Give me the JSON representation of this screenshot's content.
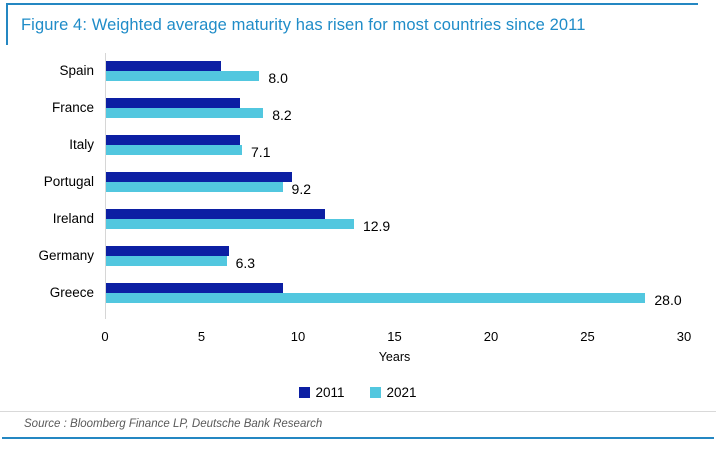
{
  "header": {
    "title": "Figure 4: Weighted average maturity has risen for most countries since 2011"
  },
  "chart_data": {
    "type": "bar",
    "orientation": "horizontal",
    "title": "Figure 4: Weighted average maturity has risen for most countries since 2011",
    "categories": [
      "Spain",
      "France",
      "Italy",
      "Portugal",
      "Ireland",
      "Germany",
      "Greece"
    ],
    "series": [
      {
        "name": "2011",
        "values": [
          6.0,
          7.0,
          7.0,
          9.7,
          11.4,
          6.4,
          9.2
        ]
      },
      {
        "name": "2021",
        "values": [
          8.0,
          8.2,
          7.1,
          9.2,
          12.9,
          6.3,
          28.0
        ]
      }
    ],
    "value_labels": [
      "8.0",
      "8.2",
      "7.1",
      "9.2",
      "12.9",
      "6.3",
      "28.0"
    ],
    "value_labels_series": "2021",
    "xlabel": "Years",
    "xlim": [
      0,
      30
    ],
    "xticks": [
      "0",
      "5",
      "10",
      "15",
      "20",
      "25",
      "30"
    ],
    "legend": [
      "2011",
      "2021"
    ],
    "legend_position": "bottom-center",
    "grid": false
  },
  "footer": {
    "source": "Source : Bloomberg Finance LP, Deutsche Bank Research"
  },
  "colors": {
    "series_2011": "#0C1FA3",
    "series_2021": "#52C7DF",
    "title_text": "#1F8CC8",
    "frame_blue": "#2487C2",
    "axis_line": "#D6D6D6",
    "divider": "#D9D9D9",
    "source_text": "#595959",
    "value_text": "#000000"
  }
}
